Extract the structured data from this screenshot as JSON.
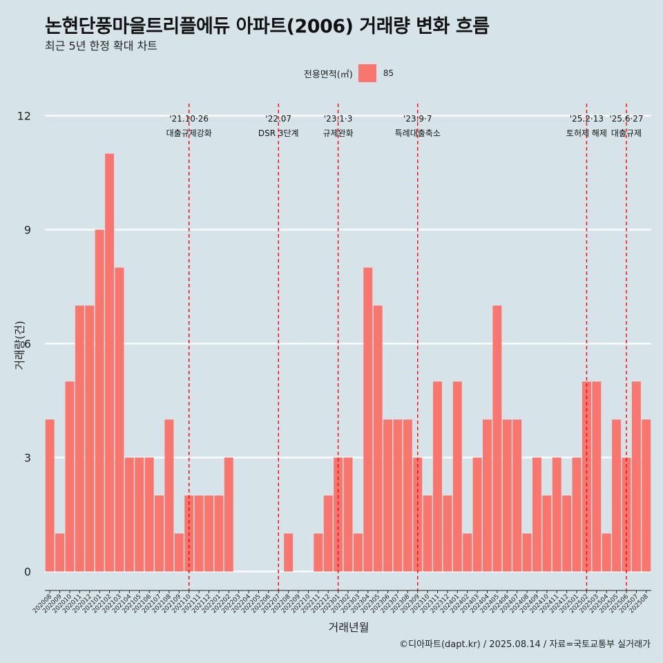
{
  "title": "논현단풍마을트리플에듀 아파트(2006) 거래량 변화 흐름",
  "subtitle": "최근 5년 한정 확대 차트",
  "legend": {
    "title": "전용면적(㎡)",
    "label": "85",
    "color": "#f8766d"
  },
  "caption": "©디아파트(dapt.kr) / 2025.08.14 / 자료=국토교통부 실거래가",
  "chart_data": {
    "type": "bar",
    "xlabel": "거래년월",
    "ylabel": "거래량(건)",
    "ylim": [
      0,
      12
    ],
    "yticks": [
      0,
      3,
      6,
      9,
      12
    ],
    "grid": true,
    "legend_position": "top",
    "bar_color": "#f8766d",
    "series": [
      {
        "name": "85",
        "color": "#f8766d"
      }
    ],
    "categories": [
      "202008",
      "202009",
      "202010",
      "202011",
      "202012",
      "202101",
      "202102",
      "202103",
      "202104",
      "202105",
      "202106",
      "202107",
      "202108",
      "202109",
      "202110",
      "202111",
      "202112",
      "202201",
      "202202",
      "202203",
      "202204",
      "202205",
      "202206",
      "202207",
      "202208",
      "202209",
      "202210",
      "202211",
      "202212",
      "202301",
      "202302",
      "202303",
      "202304",
      "202305",
      "202306",
      "202307",
      "202308",
      "202309",
      "202310",
      "202311",
      "202312",
      "202401",
      "202402",
      "202403",
      "202404",
      "202405",
      "202406",
      "202407",
      "202408",
      "202409",
      "202410",
      "202411",
      "202412",
      "202501",
      "202502",
      "202503",
      "202504",
      "202505",
      "202506",
      "202507",
      "202508"
    ],
    "values": [
      4,
      1,
      5,
      7,
      7,
      9,
      11,
      8,
      3,
      3,
      3,
      2,
      4,
      1,
      2,
      2,
      2,
      2,
      3,
      0,
      0,
      0,
      0,
      0,
      1,
      0,
      0,
      1,
      2,
      3,
      3,
      1,
      8,
      7,
      4,
      4,
      4,
      3,
      2,
      5,
      2,
      5,
      1,
      3,
      4,
      7,
      4,
      4,
      1,
      3,
      2,
      3,
      2,
      3,
      5,
      5,
      1,
      4,
      3,
      5,
      4
    ],
    "annotations": [
      {
        "line1": "'21.10·26",
        "line2": "대출규제강화",
        "x": "202110",
        "line_color": "#ff0000"
      },
      {
        "line1": "'22.07",
        "line2": "DSR 3단계",
        "x": "202207",
        "line_color": "#ff0000"
      },
      {
        "line1": "'23.1·3",
        "line2": "규제완화",
        "x": "202301",
        "line_color": "#ff0000"
      },
      {
        "line1": "'23.9·7",
        "line2": "특례대출축소",
        "x": "202309",
        "line_color": "#ff0000"
      },
      {
        "line1": "'25.2·13",
        "line2": "토허제 해제",
        "x": "202502",
        "line_color": "#ff0000"
      },
      {
        "line1": "'25.6·27",
        "line2": "대출규제",
        "x": "202506",
        "line_color": "#ff0000"
      }
    ]
  }
}
